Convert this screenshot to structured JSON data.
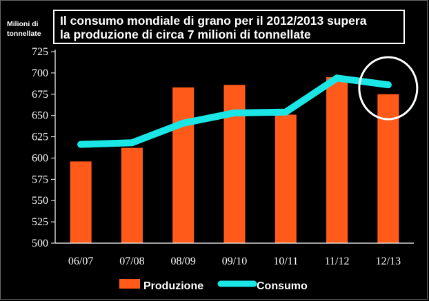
{
  "header": {
    "title_line1": "Il consumo mondiale di grano per il 2012/2013 supera",
    "title_line2": "la produzione di circa 7 milioni di tonnellate"
  },
  "axis_unit": {
    "line1": "Milioni di",
    "line2": "tonnellate"
  },
  "colors": {
    "produzione": "#ff5a1a",
    "consumo": "#1ae6e6",
    "background": "#000000",
    "highlight_circle": "#ffffff"
  },
  "chart_data": {
    "type": "bar",
    "title": "Il consumo mondiale di grano per il 2012/2013 supera la produzione di circa 7 milioni di tonnellate",
    "ylabel": "Milioni di tonnellate",
    "xlabel": "",
    "categories": [
      "06/07",
      "07/08",
      "08/09",
      "09/10",
      "10/11",
      "11/12",
      "12/13"
    ],
    "ylim": [
      500,
      725
    ],
    "yticks": [
      500,
      525,
      550,
      575,
      600,
      625,
      650,
      675,
      700,
      725
    ],
    "grid": false,
    "legend": "bottom",
    "series": [
      {
        "name": "Produzione",
        "type": "bar",
        "values": [
          596,
          612,
          683,
          686,
          651,
          695,
          675
        ]
      },
      {
        "name": "Consumo",
        "type": "line",
        "values": [
          616,
          618,
          641,
          653,
          654,
          694,
          686
        ]
      }
    ],
    "annotations": [
      {
        "type": "circle",
        "category": "12/13"
      }
    ]
  }
}
